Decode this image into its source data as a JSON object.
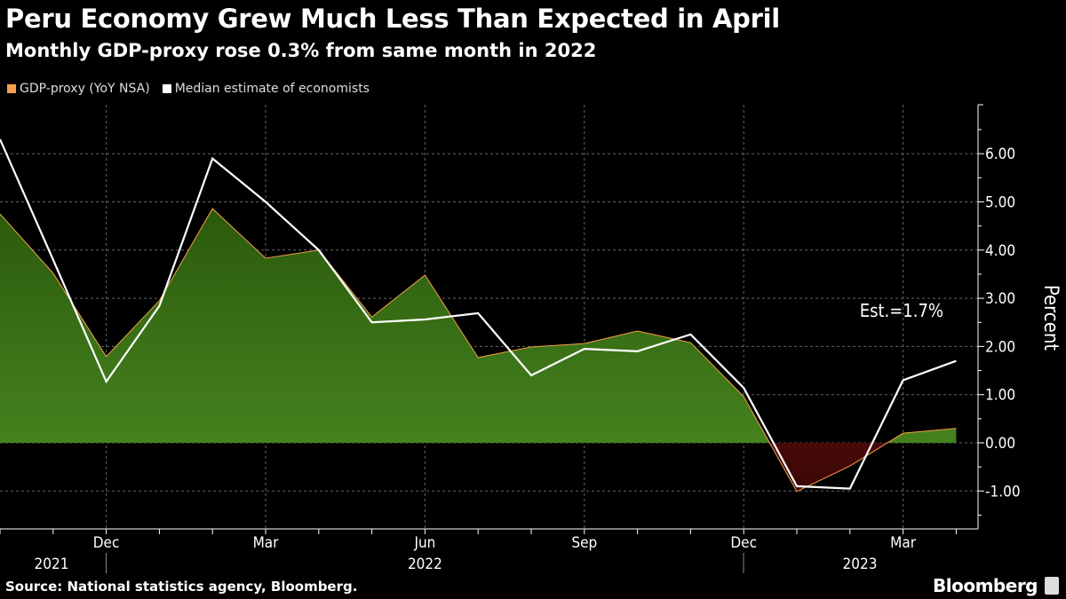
{
  "title": "Peru Economy Grew Much Less Than Expected in April",
  "subtitle": "Monthly GDP-proxy rose 0.3% from same month in 2022",
  "source": "Source: National statistics agency, Bloomberg.",
  "logo": "Bloomberg",
  "chart_data": {
    "type": "area",
    "x": [
      "2021-10",
      "2021-11",
      "2021-12",
      "2022-01",
      "2022-02",
      "2022-03",
      "2022-04",
      "2022-05",
      "2022-06",
      "2022-07",
      "2022-08",
      "2022-09",
      "2022-10",
      "2022-11",
      "2022-12",
      "2023-01",
      "2023-02",
      "2023-03",
      "2023-04"
    ],
    "series": [
      {
        "name": "GDP-proxy (YoY NSA)",
        "type": "area",
        "color": "#f5a04a",
        "positive_fill": "#3b7a1c",
        "negative_fill": "#7a1616",
        "values": [
          4.75,
          3.52,
          1.79,
          2.95,
          4.86,
          3.83,
          4.0,
          2.61,
          3.48,
          1.77,
          1.99,
          2.06,
          2.32,
          2.08,
          0.96,
          -1.01,
          -0.48,
          0.2,
          0.3
        ]
      },
      {
        "name": "Median estimate of economists",
        "type": "line",
        "color": "#ffffff",
        "values": [
          6.3,
          3.8,
          1.27,
          2.84,
          5.9,
          5.0,
          4.0,
          2.5,
          2.56,
          2.69,
          1.4,
          1.95,
          1.9,
          2.25,
          1.14,
          -0.9,
          -0.95,
          1.3,
          1.7
        ]
      }
    ],
    "annotation": "Est.=1.7%",
    "ylabel": "Percent",
    "yticks": [
      "6.00",
      "5.00",
      "4.00",
      "3.00",
      "2.00",
      "1.00",
      "0.00",
      "-1.00"
    ],
    "ylim": [
      -1.8,
      7.0
    ],
    "xtick_labels": [
      {
        "month": "2021-12",
        "label": "Dec"
      },
      {
        "month": "2022-03",
        "label": "Mar"
      },
      {
        "month": "2022-06",
        "label": "Jun"
      },
      {
        "month": "2022-09",
        "label": "Sep"
      },
      {
        "month": "2022-12",
        "label": "Dec"
      },
      {
        "month": "2023-03",
        "label": "Mar"
      }
    ],
    "year_labels": [
      {
        "label": "2021",
        "center_month": "2021-11"
      },
      {
        "label": "2022",
        "center_month": "2022-06"
      },
      {
        "label": "2023",
        "center_month": "2023-02"
      }
    ],
    "grid": true,
    "legend_position": "top-left"
  }
}
